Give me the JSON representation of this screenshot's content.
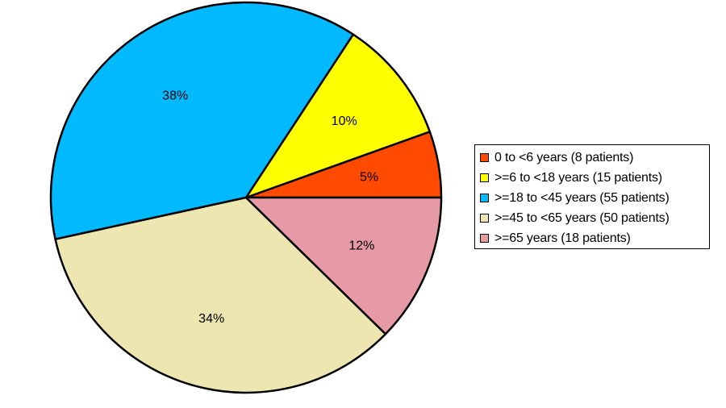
{
  "chart_data": {
    "type": "pie",
    "title": "",
    "slices": [
      {
        "label": "0 to <6 years (8 patients)",
        "value": 8,
        "percent_label": "5%",
        "color": "#ff4a00"
      },
      {
        "label": ">=6 to <18 years (15 patients)",
        "value": 15,
        "percent_label": "10%",
        "color": "#ffff00"
      },
      {
        "label": ">=18 to <45 years (55 patients)",
        "value": 55,
        "percent_label": "38%",
        "color": "#00b9ff"
      },
      {
        "label": ">=45 to <65 years (50 patients)",
        "value": 50,
        "percent_label": "34%",
        "color": "#eee6b0"
      },
      {
        "label": ">=65 years (18 patients)",
        "value": 18,
        "percent_label": "12%",
        "color": "#e69aa6"
      }
    ],
    "start_angle_deg": 0,
    "direction": "counterclockwise",
    "legend_position": "right"
  }
}
